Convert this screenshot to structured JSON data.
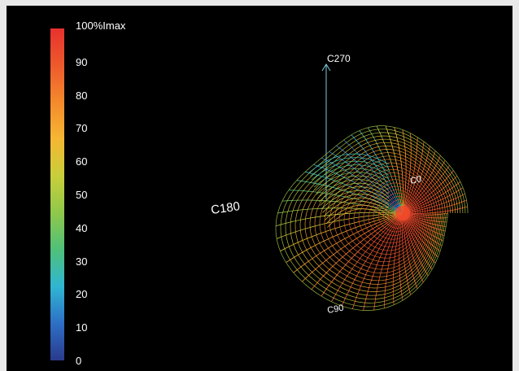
{
  "colorbar": {
    "colors": [
      "#2a3a8c",
      "#2e6fc6",
      "#2fb6d2",
      "#4fc07a",
      "#8fc84a",
      "#c8cf3a",
      "#f6b733",
      "#f48a2c",
      "#ee5a2c",
      "#e8312e"
    ],
    "ticks": [
      {
        "label": "100%Imax",
        "value": 100
      },
      {
        "label": "90",
        "value": 90
      },
      {
        "label": "80",
        "value": 80
      },
      {
        "label": "70",
        "value": 70
      },
      {
        "label": "60",
        "value": 60
      },
      {
        "label": "50",
        "value": 50
      },
      {
        "label": "40",
        "value": 40
      },
      {
        "label": "30",
        "value": 30
      },
      {
        "label": "20",
        "value": 20
      },
      {
        "label": "10",
        "value": 10
      },
      {
        "label": "0",
        "value": 0
      }
    ]
  },
  "plane_labels": {
    "c270": "C270",
    "c0": "C0",
    "c90": "C90",
    "c180": "C180"
  }
}
